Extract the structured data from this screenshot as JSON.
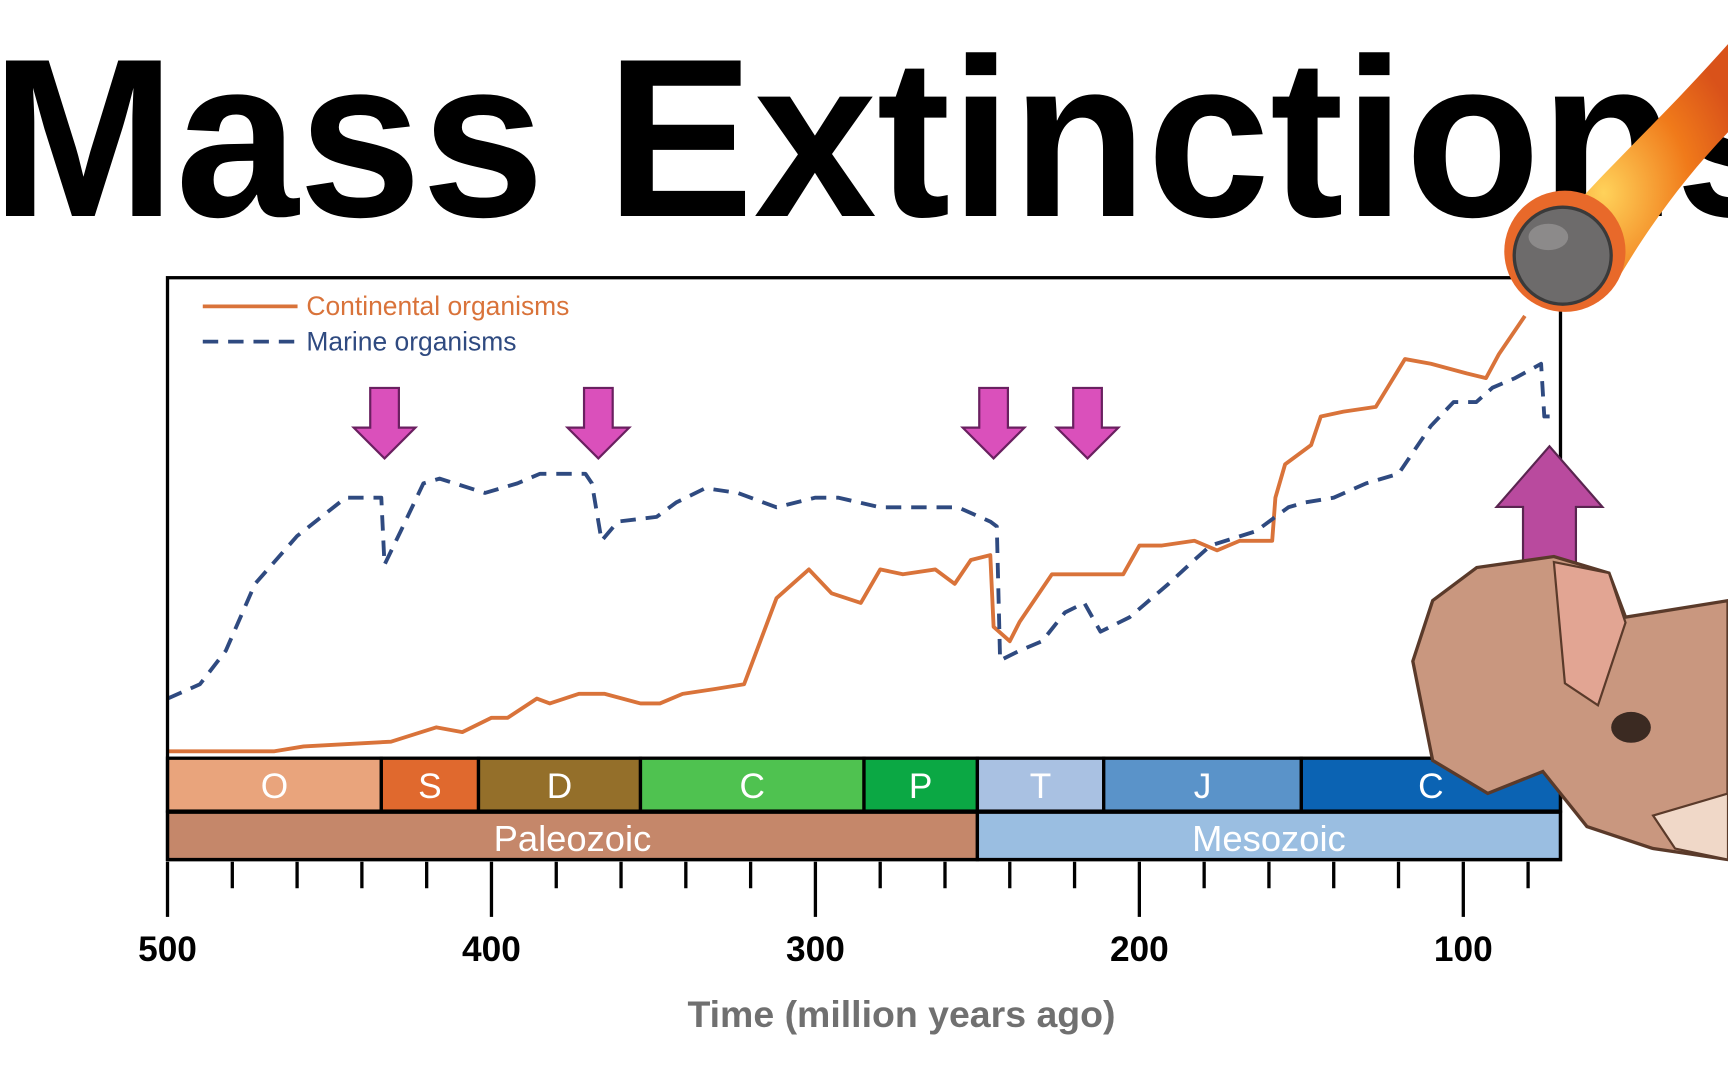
{
  "chart_data": {
    "type": "line",
    "title": "Mass Extinctions",
    "x_label": "Time (million years ago)",
    "xlim": [
      500,
      70
    ],
    "ylim": [
      0,
      100
    ],
    "xticks": [
      500,
      400,
      300,
      200,
      100
    ],
    "minor_xticks": [
      480,
      460,
      440,
      420,
      380,
      360,
      340,
      320,
      280,
      260,
      240,
      220,
      180,
      160,
      140,
      120,
      80
    ],
    "legend": "top-left",
    "series": [
      {
        "name": "Continental organisms",
        "color": "#d9733a",
        "dashed": false,
        "x": [
          500,
          467,
          458,
          431,
          417,
          409,
          400,
          395,
          386,
          382,
          373,
          365,
          354,
          348,
          341,
          331,
          322,
          312,
          302,
          295,
          286,
          280,
          273,
          263,
          257,
          252,
          246,
          245,
          240,
          237,
          227,
          205,
          200,
          193,
          183,
          176,
          169,
          159,
          158,
          155,
          147,
          144,
          137,
          127,
          118,
          110,
          99,
          93,
          89,
          81
        ],
        "values": [
          1,
          1,
          2,
          3,
          6,
          5,
          8,
          8,
          12,
          11,
          13,
          13,
          11,
          11,
          13,
          14,
          15,
          33,
          39,
          34,
          32,
          39,
          38,
          39,
          36,
          41,
          42,
          27,
          24,
          28,
          38,
          38,
          44,
          44,
          45,
          43,
          45,
          45,
          54,
          61,
          65,
          71,
          72,
          73,
          83,
          82,
          80,
          79,
          84,
          92
        ]
      },
      {
        "name": "Marine organisms",
        "color": "#2f4a80",
        "dashed": true,
        "x": [
          500,
          490,
          482,
          473,
          460,
          445,
          434,
          433,
          428,
          421,
          416,
          402,
          392,
          385,
          371,
          369,
          366,
          361,
          349,
          343,
          334,
          324,
          312,
          300,
          293,
          280,
          266,
          256,
          246,
          244,
          243,
          237,
          230,
          223,
          217,
          212,
          203,
          191,
          183,
          178,
          164,
          154,
          149,
          140,
          130,
          120,
          110,
          103,
          96,
          91,
          84,
          76,
          75,
          70
        ],
        "values": [
          12,
          15,
          22,
          36,
          46,
          54,
          54,
          40,
          47,
          57,
          58,
          55,
          57,
          59,
          59,
          57,
          45,
          49,
          50,
          53,
          56,
          55,
          52,
          54,
          54,
          52,
          52,
          52,
          49,
          48,
          20,
          22,
          24,
          30,
          32,
          26,
          29,
          36,
          41,
          44,
          47,
          52,
          53,
          54,
          57,
          59,
          69,
          74,
          74,
          77,
          79,
          82,
          71,
          71
        ]
      }
    ],
    "periods": [
      {
        "label": "O",
        "start": 500,
        "end": 434,
        "color": "#e9a47c"
      },
      {
        "label": "S",
        "start": 434,
        "end": 404,
        "color": "#e0692e"
      },
      {
        "label": "D",
        "start": 404,
        "end": 354,
        "color": "#946f2a"
      },
      {
        "label": "C",
        "start": 354,
        "end": 285,
        "color": "#4fc250"
      },
      {
        "label": "P",
        "start": 285,
        "end": 250,
        "color": "#0ba844"
      },
      {
        "label": "T",
        "start": 250,
        "end": 211,
        "color": "#a9c1e2"
      },
      {
        "label": "J",
        "start": 211,
        "end": 150,
        "color": "#5a93c9"
      },
      {
        "label": "C",
        "start": 150,
        "end": 70,
        "color": "#0b63b3"
      }
    ],
    "eras": [
      {
        "label": "Paleozoic",
        "start": 500,
        "end": 250,
        "color": "#c5876a"
      },
      {
        "label": "Mesozoic",
        "start": 250,
        "end": 70,
        "color": "#9abee1"
      }
    ],
    "extinctions": [
      433,
      367,
      245,
      216
    ],
    "extinction_color": "#da50bb"
  }
}
